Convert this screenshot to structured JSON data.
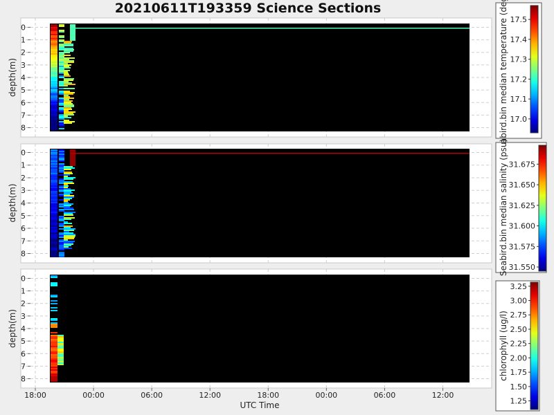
{
  "title": "20210611T193359 Science Sections",
  "chart_data": [
    {
      "type": "heatmap",
      "ylabel": "depth(m)",
      "xlabel": "",
      "ylim": [
        8.3,
        -0.3
      ],
      "y_ticks": [
        "0",
        "1",
        "2",
        "3",
        "4",
        "5",
        "6",
        "7",
        "8"
      ],
      "x_ticks": [],
      "colorbar": {
        "label": "Seabird.bin median temperature (degC)",
        "range": [
          16.93,
          17.57
        ],
        "ticks": [
          "17.5",
          "17.4",
          "17.3",
          "17.2",
          "17.1",
          "17.0"
        ],
        "tick_values": [
          17.5,
          17.4,
          17.3,
          17.2,
          17.1,
          17.0
        ]
      },
      "grid": true
    },
    {
      "type": "heatmap",
      "ylabel": "depth(m)",
      "xlabel": "",
      "ylim": [
        8.3,
        -0.3
      ],
      "y_ticks": [
        "0",
        "1",
        "2",
        "3",
        "4",
        "5",
        "6",
        "7",
        "8"
      ],
      "x_ticks": [],
      "colorbar": {
        "label": "Seabird.bin median salinity (psu)",
        "range": [
          31.545,
          31.698
        ],
        "ticks": [
          "31.675",
          "31.650",
          "31.625",
          "31.600",
          "31.575",
          "31.550"
        ],
        "tick_values": [
          31.675,
          31.65,
          31.625,
          31.6,
          31.575,
          31.55
        ]
      },
      "grid": true
    },
    {
      "type": "heatmap",
      "ylabel": "depth(m)",
      "xlabel": "UTC Time",
      "ylim": [
        8.3,
        -0.3
      ],
      "y_ticks": [
        "0",
        "1",
        "2",
        "3",
        "4",
        "5",
        "6",
        "7",
        "8"
      ],
      "x_ticks": [
        "18:00",
        "00:00",
        "06:00",
        "12:00",
        "18:00",
        "00:00",
        "06:00",
        "12:00"
      ],
      "colorbar": {
        "label": "chlorophyll (ug/l)",
        "range": [
          1.1,
          3.32
        ],
        "ticks": [
          "3.25",
          "3.00",
          "2.75",
          "2.50",
          "2.25",
          "2.00",
          "1.75",
          "1.50",
          "1.25"
        ],
        "tick_values": [
          3.25,
          3.0,
          2.75,
          2.5,
          2.25,
          2.0,
          1.75,
          1.5,
          1.25
        ]
      },
      "grid": true
    }
  ]
}
